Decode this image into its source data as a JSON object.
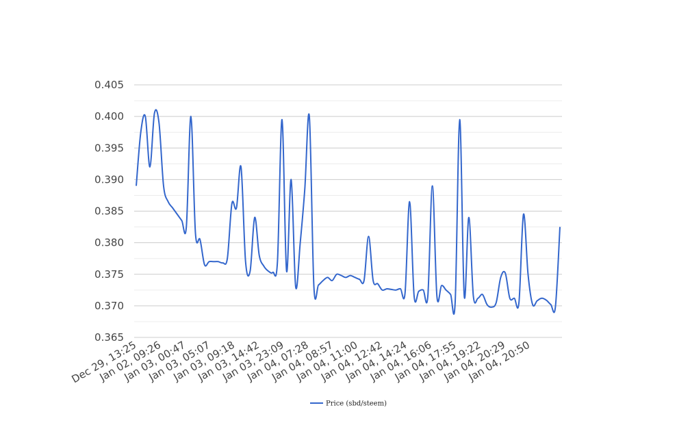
{
  "chart_data": {
    "type": "line",
    "title": "",
    "xlabel": "",
    "ylabel": "",
    "ylim": [
      0.365,
      0.405
    ],
    "y_ticks": [
      "0.405",
      "0.400",
      "0.395",
      "0.390",
      "0.385",
      "0.380",
      "0.375",
      "0.370",
      "0.365"
    ],
    "grid": true,
    "legend_position": "bottom",
    "x_tick_labels": [
      "Dec 29, 13:25",
      "Jan 02, 09:26",
      "Jan 03, 00:47",
      "Jan 03, 05:07",
      "Jan 03, 09:18",
      "Jan 03, 14:42",
      "Jan 03, 23:09",
      "Jan 04, 07:28",
      "Jan 04, 08:57",
      "Jan 04, 11:00",
      "Jan 04, 12:42",
      "Jan 04, 14:24",
      "Jan 04, 16:06",
      "Jan 04, 17:55",
      "Jan 04, 19:22",
      "Jan 04, 20:29",
      "Jan 04, 20:50"
    ],
    "series": [
      {
        "name": "Price (sbd/steem)",
        "color": "#3366cc",
        "values": [
          0.389,
          0.3975,
          0.4,
          0.392,
          0.4005,
          0.399,
          0.389,
          0.3865,
          0.3855,
          0.3845,
          0.3835,
          0.3825,
          0.4,
          0.3815,
          0.3805,
          0.3765,
          0.377,
          0.377,
          0.377,
          0.3768,
          0.3775,
          0.3862,
          0.3855,
          0.392,
          0.377,
          0.3755,
          0.384,
          0.378,
          0.3763,
          0.3755,
          0.3753,
          0.377,
          0.3995,
          0.3755,
          0.39,
          0.373,
          0.38,
          0.3885,
          0.4,
          0.373,
          0.3733,
          0.374,
          0.3745,
          0.374,
          0.375,
          0.3748,
          0.3745,
          0.3748,
          0.3745,
          0.3742,
          0.374,
          0.381,
          0.374,
          0.3735,
          0.3725,
          0.3727,
          0.3726,
          0.3725,
          0.3727,
          0.372,
          0.3865,
          0.3715,
          0.3723,
          0.3725,
          0.3715,
          0.389,
          0.3715,
          0.3732,
          0.3725,
          0.3718,
          0.3705,
          0.3995,
          0.3715,
          0.384,
          0.3715,
          0.3712,
          0.3718,
          0.3702,
          0.3698,
          0.3705,
          0.3745,
          0.3752,
          0.3712,
          0.3712,
          0.3705,
          0.3845,
          0.375,
          0.3702,
          0.3708,
          0.3712,
          0.3709,
          0.3702,
          0.3698,
          0.3825
        ]
      }
    ]
  }
}
